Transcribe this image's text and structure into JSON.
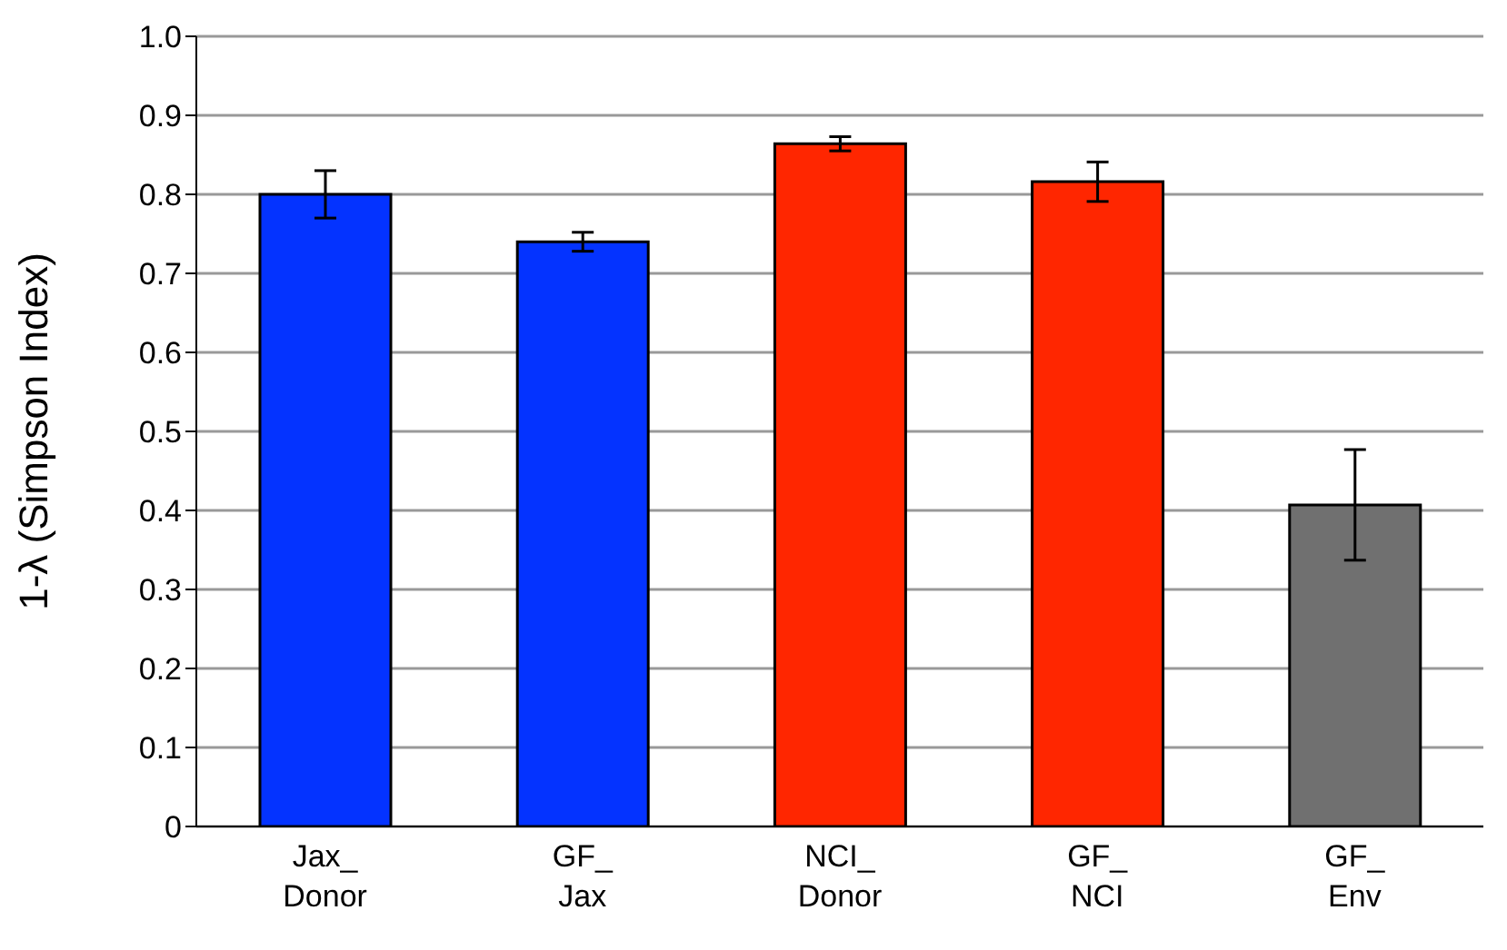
{
  "chart_data": {
    "type": "bar",
    "ylabel": "1-λ (Simpson Index)",
    "categories": [
      "Jax_\nDonor",
      "GF_\nJax",
      "NCI_\nDonor",
      "GF_\nNCI",
      "GF_\nEnv"
    ],
    "values": [
      0.8,
      0.74,
      0.864,
      0.816,
      0.407
    ],
    "errors": [
      0.03,
      0.012,
      0.009,
      0.025,
      0.07
    ],
    "colors": [
      "#0433ff",
      "#0433ff",
      "#ff2600",
      "#ff2600",
      "#707070"
    ],
    "ylim": [
      0,
      1
    ],
    "yticks": [
      0,
      0.1,
      0.2,
      0.3,
      0.4,
      0.5,
      0.6,
      0.7,
      0.8,
      0.9,
      {
        "value": 1,
        "label": "1.0"
      }
    ],
    "grid": "y"
  }
}
